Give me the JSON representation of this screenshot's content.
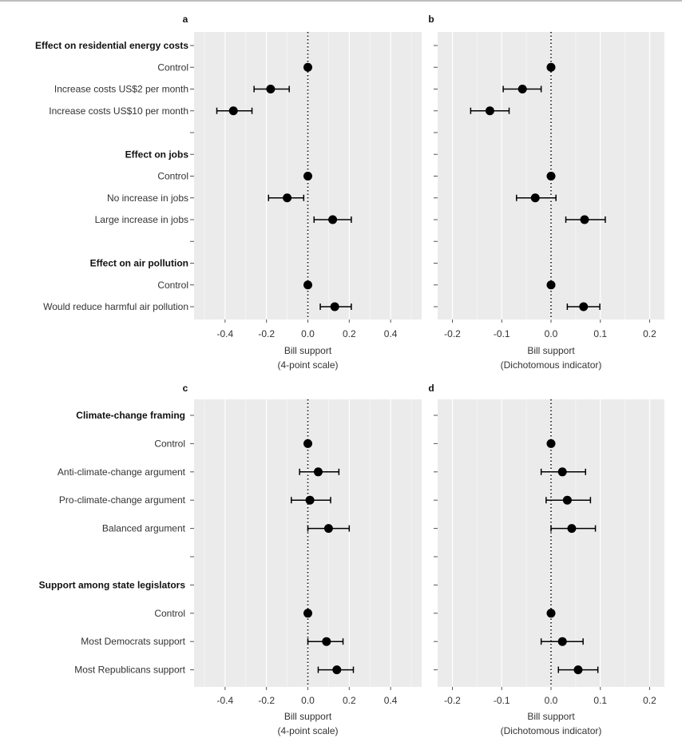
{
  "colors": {
    "panel_bg": "#ebebeb",
    "grid": "#ffffff",
    "point": "#000000",
    "text": "#333333"
  },
  "chart_data": [
    {
      "panel": "a",
      "type": "scatter",
      "error_bars": true,
      "orientation": "horizontal",
      "rows": [
        {
          "label": "Effect on residential energy costs",
          "header": true
        },
        {
          "label": "Control",
          "value": 0.0,
          "low": null,
          "high": null
        },
        {
          "label": "Increase costs US$2 per month",
          "value": -0.18,
          "low": -0.26,
          "high": -0.09
        },
        {
          "label": "Increase costs US$10 per month",
          "value": -0.36,
          "low": -0.44,
          "high": -0.27
        },
        {
          "label": "",
          "spacer": true
        },
        {
          "label": "Effect on jobs",
          "header": true
        },
        {
          "label": "Control",
          "value": 0.0,
          "low": null,
          "high": null
        },
        {
          "label": "No increase in jobs",
          "value": -0.1,
          "low": -0.19,
          "high": -0.02
        },
        {
          "label": "Large increase in jobs",
          "value": 0.12,
          "low": 0.03,
          "high": 0.21
        },
        {
          "label": "",
          "spacer": true
        },
        {
          "label": "Effect on air pollution",
          "header": true
        },
        {
          "label": "Control",
          "value": 0.0,
          "low": null,
          "high": null
        },
        {
          "label": "Would reduce harmful air pollution",
          "value": 0.13,
          "low": 0.06,
          "high": 0.21
        }
      ],
      "xlim": [
        -0.55,
        0.55
      ],
      "xticks": [
        -0.4,
        -0.2,
        0.0,
        0.2,
        0.4
      ],
      "xtick_labels": [
        "-0.4",
        "-0.2",
        "0.0",
        "0.2",
        "0.4"
      ],
      "xlabel": [
        "Bill support",
        "(4-point scale)"
      ],
      "grid": true,
      "reference_line": 0
    },
    {
      "panel": "b",
      "type": "scatter",
      "error_bars": true,
      "orientation": "horizontal",
      "rows": [
        {
          "label": "",
          "header": true
        },
        {
          "label": "",
          "value": 0.0,
          "low": null,
          "high": null
        },
        {
          "label": "",
          "value": -0.058,
          "low": -0.097,
          "high": -0.02
        },
        {
          "label": "",
          "value": -0.124,
          "low": -0.163,
          "high": -0.085
        },
        {
          "label": "",
          "spacer": true
        },
        {
          "label": "",
          "header": true
        },
        {
          "label": "",
          "value": 0.0,
          "low": null,
          "high": null
        },
        {
          "label": "",
          "value": -0.032,
          "low": -0.07,
          "high": 0.01
        },
        {
          "label": "",
          "value": 0.068,
          "low": 0.03,
          "high": 0.11
        },
        {
          "label": "",
          "spacer": true
        },
        {
          "label": "",
          "header": true
        },
        {
          "label": "",
          "value": 0.0,
          "low": null,
          "high": null
        },
        {
          "label": "",
          "value": 0.066,
          "low": 0.033,
          "high": 0.099
        }
      ],
      "xlim": [
        -0.23,
        0.23
      ],
      "xticks": [
        -0.2,
        -0.1,
        0.0,
        0.1,
        0.2
      ],
      "xtick_labels": [
        "-0.2",
        "-0.1",
        "0.0",
        "0.1",
        "0.2"
      ],
      "xlabel": [
        "Bill support",
        "(Dichotomous indicator)"
      ],
      "grid": true,
      "reference_line": 0
    },
    {
      "panel": "c",
      "type": "scatter",
      "error_bars": true,
      "orientation": "horizontal",
      "rows": [
        {
          "label": "Climate-change framing",
          "header": true
        },
        {
          "label": "Control",
          "value": 0.0,
          "low": null,
          "high": null
        },
        {
          "label": "Anti-climate-change argument",
          "value": 0.05,
          "low": -0.04,
          "high": 0.15
        },
        {
          "label": "Pro-climate-change argument",
          "value": 0.01,
          "low": -0.08,
          "high": 0.11
        },
        {
          "label": "Balanced argument",
          "value": 0.1,
          "low": 0.0,
          "high": 0.2
        },
        {
          "label": "",
          "spacer": true
        },
        {
          "label": "Support among state legislators",
          "header": true
        },
        {
          "label": "Control",
          "value": 0.0,
          "low": null,
          "high": null
        },
        {
          "label": "Most Democrats support",
          "value": 0.09,
          "low": 0.0,
          "high": 0.17
        },
        {
          "label": "Most Republicans support",
          "value": 0.14,
          "low": 0.05,
          "high": 0.22
        }
      ],
      "xlim": [
        -0.55,
        0.55
      ],
      "xticks": [
        -0.4,
        -0.2,
        0.0,
        0.2,
        0.4
      ],
      "xtick_labels": [
        "-0.4",
        "-0.2",
        "0.0",
        "0.2",
        "0.4"
      ],
      "xlabel": [
        "Bill support",
        "(4-point scale)"
      ],
      "grid": true,
      "reference_line": 0
    },
    {
      "panel": "d",
      "type": "scatter",
      "error_bars": true,
      "orientation": "horizontal",
      "rows": [
        {
          "label": "",
          "header": true
        },
        {
          "label": "",
          "value": 0.0,
          "low": null,
          "high": null
        },
        {
          "label": "",
          "value": 0.023,
          "low": -0.02,
          "high": 0.07
        },
        {
          "label": "",
          "value": 0.033,
          "low": -0.01,
          "high": 0.08
        },
        {
          "label": "",
          "value": 0.042,
          "low": 0.0,
          "high": 0.09
        },
        {
          "label": "",
          "spacer": true
        },
        {
          "label": "",
          "header": true
        },
        {
          "label": "",
          "value": 0.0,
          "low": null,
          "high": null
        },
        {
          "label": "",
          "value": 0.023,
          "low": -0.02,
          "high": 0.065
        },
        {
          "label": "",
          "value": 0.055,
          "low": 0.015,
          "high": 0.095
        }
      ],
      "xlim": [
        -0.23,
        0.23
      ],
      "xticks": [
        -0.2,
        -0.1,
        0.0,
        0.1,
        0.2
      ],
      "xtick_labels": [
        "-0.2",
        "-0.1",
        "0.0",
        "0.1",
        "0.2"
      ],
      "xlabel": [
        "Bill support",
        "(Dichotomous indicator)"
      ],
      "grid": true,
      "reference_line": 0
    }
  ]
}
